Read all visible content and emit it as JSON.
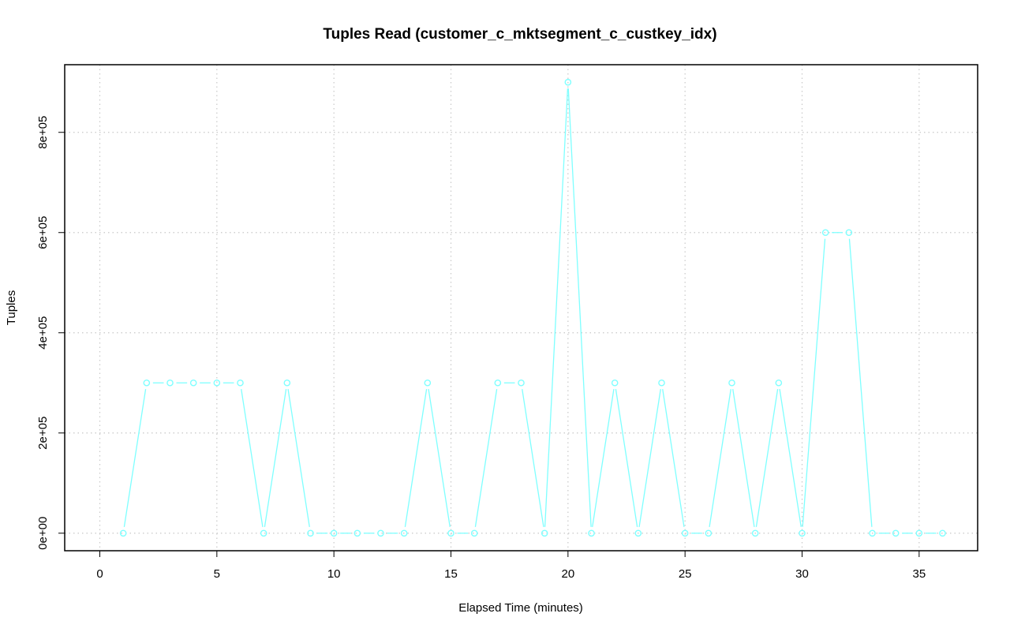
{
  "chart_data": {
    "type": "line",
    "title": "Tuples Read (customer_c_mktsegment_c_custkey_idx)",
    "xlabel": "Elapsed Time (minutes)",
    "ylabel": "Tuples",
    "xlim": [
      -1.5,
      37.5
    ],
    "ylim": [
      -35000,
      935000
    ],
    "x_ticks": [
      0,
      5,
      10,
      15,
      20,
      25,
      30,
      35
    ],
    "x_tick_labels": [
      "0",
      "5",
      "10",
      "15",
      "20",
      "25",
      "30",
      "35"
    ],
    "y_ticks": [
      0,
      200000,
      400000,
      600000,
      800000
    ],
    "y_tick_labels": [
      "0e+00",
      "2e+05",
      "4e+05",
      "6e+05",
      "8e+05"
    ],
    "grid": true,
    "series": [
      {
        "color": "#7fffff",
        "marker": "circle",
        "x": [
          1,
          2,
          3,
          4,
          5,
          6,
          7,
          8,
          9,
          10,
          11,
          12,
          13,
          14,
          15,
          16,
          17,
          18,
          19,
          20,
          21,
          22,
          23,
          24,
          25,
          26,
          27,
          28,
          29,
          30,
          31,
          32,
          33,
          34,
          35,
          36
        ],
        "values": [
          0,
          300000,
          300000,
          300000,
          300000,
          300000,
          0,
          300000,
          0,
          0,
          0,
          0,
          0,
          300000,
          0,
          0,
          300000,
          300000,
          0,
          900000,
          0,
          300000,
          0,
          300000,
          0,
          0,
          300000,
          0,
          300000,
          0,
          600000,
          600000,
          0,
          0,
          0,
          0
        ]
      }
    ]
  }
}
